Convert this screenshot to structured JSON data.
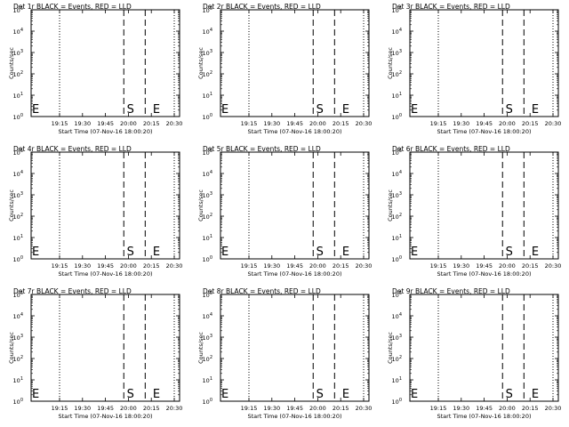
{
  "chart_data": [
    {
      "type": "line",
      "title": "Det 1r BLACK = Events, RED = LLD",
      "xlabel": "Start Time (07-Nov-16 18:00:20)",
      "ylabel": "Counts/sec",
      "x_tick_labels": [
        "19:15",
        "19:30",
        "19:45",
        "20:00",
        "20:15",
        "20:30"
      ],
      "y_tick_labels": [
        {
          "base": "10",
          "exp": "0"
        },
        {
          "base": "10",
          "exp": "1"
        },
        {
          "base": "10",
          "exp": "2"
        },
        {
          "base": "10",
          "exp": "3"
        },
        {
          "base": "10",
          "exp": "4"
        },
        {
          "base": "10",
          "exp": "5"
        }
      ],
      "ylim": [
        1,
        100000
      ],
      "yscale": "log",
      "series": [],
      "dotted_lines": [
        "19:15",
        "20:30"
      ],
      "dashed_lines": [
        "19:57",
        "20:11"
      ],
      "markers": [
        {
          "text": "E",
          "x": "18:56"
        },
        {
          "text": "S",
          "x": "19:59"
        },
        {
          "text": "E",
          "x": "20:16"
        }
      ]
    },
    {
      "type": "line",
      "title": "Det 2r BLACK = Events, RED = LLD",
      "xlabel": "Start Time (07-Nov-16 18:00:20)",
      "ylabel": "Counts/sec",
      "x_tick_labels": [
        "19:15",
        "19:30",
        "19:45",
        "20:00",
        "20:15",
        "20:30"
      ],
      "y_tick_labels": [
        {
          "base": "10",
          "exp": "0"
        },
        {
          "base": "10",
          "exp": "1"
        },
        {
          "base": "10",
          "exp": "2"
        },
        {
          "base": "10",
          "exp": "3"
        },
        {
          "base": "10",
          "exp": "4"
        },
        {
          "base": "10",
          "exp": "5"
        }
      ],
      "ylim": [
        1,
        100000
      ],
      "yscale": "log",
      "series": [],
      "dotted_lines": [
        "19:15",
        "20:30"
      ],
      "dashed_lines": [
        "19:57",
        "20:11"
      ],
      "markers": [
        {
          "text": "E",
          "x": "18:56"
        },
        {
          "text": "S",
          "x": "19:59"
        },
        {
          "text": "E",
          "x": "20:16"
        }
      ]
    },
    {
      "type": "line",
      "title": "Det 3r BLACK = Events, RED = LLD",
      "xlabel": "Start Time (07-Nov-16 18:00:20)",
      "ylabel": "Counts/sec",
      "x_tick_labels": [
        "19:15",
        "19:30",
        "19:45",
        "20:00",
        "20:15",
        "20:30"
      ],
      "y_tick_labels": [
        {
          "base": "10",
          "exp": "0"
        },
        {
          "base": "10",
          "exp": "1"
        },
        {
          "base": "10",
          "exp": "2"
        },
        {
          "base": "10",
          "exp": "3"
        },
        {
          "base": "10",
          "exp": "4"
        },
        {
          "base": "10",
          "exp": "5"
        }
      ],
      "ylim": [
        1,
        100000
      ],
      "yscale": "log",
      "series": [],
      "dotted_lines": [
        "19:15",
        "20:30"
      ],
      "dashed_lines": [
        "19:57",
        "20:11"
      ],
      "markers": [
        {
          "text": "E",
          "x": "18:56"
        },
        {
          "text": "S",
          "x": "19:59"
        },
        {
          "text": "E",
          "x": "20:16"
        }
      ]
    },
    {
      "type": "line",
      "title": "Det 4r BLACK = Events, RED = LLD",
      "xlabel": "Start Time (07-Nov-16 18:00:20)",
      "ylabel": "Counts/sec",
      "x_tick_labels": [
        "19:15",
        "19:30",
        "19:45",
        "20:00",
        "20:15",
        "20:30"
      ],
      "y_tick_labels": [
        {
          "base": "10",
          "exp": "0"
        },
        {
          "base": "10",
          "exp": "1"
        },
        {
          "base": "10",
          "exp": "2"
        },
        {
          "base": "10",
          "exp": "3"
        },
        {
          "base": "10",
          "exp": "4"
        },
        {
          "base": "10",
          "exp": "5"
        }
      ],
      "ylim": [
        1,
        100000
      ],
      "yscale": "log",
      "series": [],
      "dotted_lines": [
        "19:15",
        "20:30"
      ],
      "dashed_lines": [
        "19:57",
        "20:11"
      ],
      "markers": [
        {
          "text": "E",
          "x": "18:56"
        },
        {
          "text": "S",
          "x": "19:59"
        },
        {
          "text": "E",
          "x": "20:16"
        }
      ]
    },
    {
      "type": "line",
      "title": "Det 5r BLACK = Events, RED = LLD",
      "xlabel": "Start Time (07-Nov-16 18:00:20)",
      "ylabel": "Counts/sec",
      "x_tick_labels": [
        "19:15",
        "19:30",
        "19:45",
        "20:00",
        "20:15",
        "20:30"
      ],
      "y_tick_labels": [
        {
          "base": "10",
          "exp": "0"
        },
        {
          "base": "10",
          "exp": "1"
        },
        {
          "base": "10",
          "exp": "2"
        },
        {
          "base": "10",
          "exp": "3"
        },
        {
          "base": "10",
          "exp": "4"
        },
        {
          "base": "10",
          "exp": "5"
        }
      ],
      "ylim": [
        1,
        100000
      ],
      "yscale": "log",
      "series": [],
      "dotted_lines": [
        "19:15",
        "20:30"
      ],
      "dashed_lines": [
        "19:57",
        "20:11"
      ],
      "markers": [
        {
          "text": "E",
          "x": "18:56"
        },
        {
          "text": "S",
          "x": "19:59"
        },
        {
          "text": "E",
          "x": "20:16"
        }
      ]
    },
    {
      "type": "line",
      "title": "Det 6r BLACK = Events, RED = LLD",
      "xlabel": "Start Time (07-Nov-16 18:00:20)",
      "ylabel": "Counts/sec",
      "x_tick_labels": [
        "19:15",
        "19:30",
        "19:45",
        "20:00",
        "20:15",
        "20:30"
      ],
      "y_tick_labels": [
        {
          "base": "10",
          "exp": "0"
        },
        {
          "base": "10",
          "exp": "1"
        },
        {
          "base": "10",
          "exp": "2"
        },
        {
          "base": "10",
          "exp": "3"
        },
        {
          "base": "10",
          "exp": "4"
        },
        {
          "base": "10",
          "exp": "5"
        }
      ],
      "ylim": [
        1,
        100000
      ],
      "yscale": "log",
      "series": [],
      "dotted_lines": [
        "19:15",
        "20:30"
      ],
      "dashed_lines": [
        "19:57",
        "20:11"
      ],
      "markers": [
        {
          "text": "E",
          "x": "18:56"
        },
        {
          "text": "S",
          "x": "19:59"
        },
        {
          "text": "E",
          "x": "20:16"
        }
      ]
    },
    {
      "type": "line",
      "title": "Det 7r BLACK = Events, RED = LLD",
      "xlabel": "Start Time (07-Nov-16 18:00:20)",
      "ylabel": "Counts/sec",
      "x_tick_labels": [
        "19:15",
        "19:30",
        "19:45",
        "20:00",
        "20:15",
        "20:30"
      ],
      "y_tick_labels": [
        {
          "base": "10",
          "exp": "0"
        },
        {
          "base": "10",
          "exp": "1"
        },
        {
          "base": "10",
          "exp": "2"
        },
        {
          "base": "10",
          "exp": "3"
        },
        {
          "base": "10",
          "exp": "4"
        },
        {
          "base": "10",
          "exp": "5"
        }
      ],
      "ylim": [
        1,
        100000
      ],
      "yscale": "log",
      "series": [],
      "dotted_lines": [
        "19:15",
        "20:30"
      ],
      "dashed_lines": [
        "19:57",
        "20:11"
      ],
      "markers": [
        {
          "text": "E",
          "x": "18:56"
        },
        {
          "text": "S",
          "x": "19:59"
        },
        {
          "text": "E",
          "x": "20:16"
        }
      ]
    },
    {
      "type": "line",
      "title": "Det 8r BLACK = Events, RED = LLD",
      "xlabel": "Start Time (07-Nov-16 18:00:20)",
      "ylabel": "Counts/sec",
      "x_tick_labels": [
        "19:15",
        "19:30",
        "19:45",
        "20:00",
        "20:15",
        "20:30"
      ],
      "y_tick_labels": [
        {
          "base": "10",
          "exp": "0"
        },
        {
          "base": "10",
          "exp": "1"
        },
        {
          "base": "10",
          "exp": "2"
        },
        {
          "base": "10",
          "exp": "3"
        },
        {
          "base": "10",
          "exp": "4"
        },
        {
          "base": "10",
          "exp": "5"
        }
      ],
      "ylim": [
        1,
        100000
      ],
      "yscale": "log",
      "series": [],
      "dotted_lines": [
        "19:15",
        "20:30"
      ],
      "dashed_lines": [
        "19:57",
        "20:11"
      ],
      "markers": [
        {
          "text": "E",
          "x": "18:56"
        },
        {
          "text": "S",
          "x": "19:59"
        },
        {
          "text": "E",
          "x": "20:16"
        }
      ]
    },
    {
      "type": "line",
      "title": "Det 9r BLACK = Events, RED = LLD",
      "xlabel": "Start Time (07-Nov-16 18:00:20)",
      "ylabel": "Counts/sec",
      "x_tick_labels": [
        "19:15",
        "19:30",
        "19:45",
        "20:00",
        "20:15",
        "20:30"
      ],
      "y_tick_labels": [
        {
          "base": "10",
          "exp": "0"
        },
        {
          "base": "10",
          "exp": "1"
        },
        {
          "base": "10",
          "exp": "2"
        },
        {
          "base": "10",
          "exp": "3"
        },
        {
          "base": "10",
          "exp": "4"
        },
        {
          "base": "10",
          "exp": "5"
        }
      ],
      "ylim": [
        1,
        100000
      ],
      "yscale": "log",
      "series": [],
      "dotted_lines": [
        "19:15",
        "20:30"
      ],
      "dashed_lines": [
        "19:57",
        "20:11"
      ],
      "markers": [
        {
          "text": "E",
          "x": "18:56"
        },
        {
          "text": "S",
          "x": "19:59"
        },
        {
          "text": "E",
          "x": "20:16"
        }
      ]
    }
  ]
}
